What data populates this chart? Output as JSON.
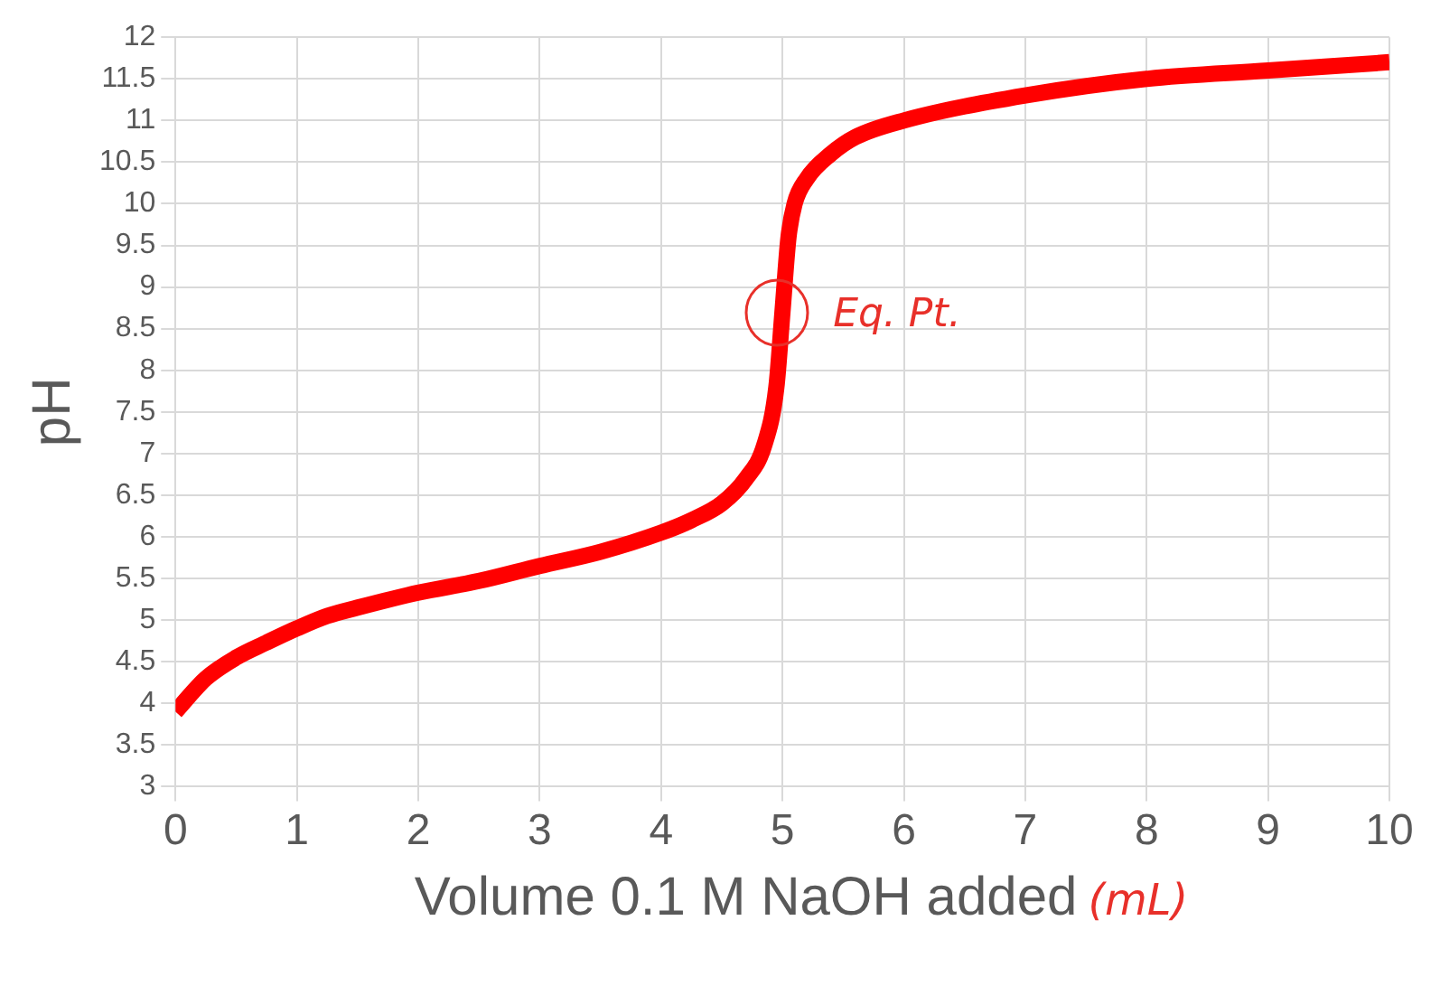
{
  "chart_data": {
    "type": "line",
    "xlabel": "Volume 0.1 M NaOH added",
    "ylabel": "pH",
    "x": [
      0,
      0.25,
      0.5,
      0.75,
      1,
      1.25,
      1.5,
      2,
      2.5,
      3,
      3.5,
      4,
      4.25,
      4.5,
      4.7,
      4.85,
      4.95,
      5,
      5.05,
      5.1,
      5.2,
      5.4,
      5.6,
      6,
      7,
      8,
      9,
      10
    ],
    "series": [
      {
        "color": "#ff0000",
        "values": [
          3.9,
          4.3,
          4.55,
          4.73,
          4.9,
          5.05,
          5.15,
          5.33,
          5.47,
          5.65,
          5.82,
          6.05,
          6.2,
          6.4,
          6.7,
          7.1,
          7.8,
          8.7,
          9.6,
          10,
          10.3,
          10.6,
          10.8,
          11,
          11.3,
          11.5,
          11.6,
          11.7
        ]
      }
    ],
    "xlim": [
      0,
      10
    ],
    "xticks": [
      0,
      1,
      2,
      3,
      4,
      5,
      6,
      7,
      8,
      9,
      10
    ],
    "ylim": [
      3,
      12
    ],
    "yticks": [
      3,
      3.5,
      4,
      4.5,
      5,
      5.5,
      6,
      6.5,
      7,
      7.5,
      8,
      8.5,
      9,
      9.5,
      10,
      10.5,
      11,
      11.5,
      12
    ],
    "grid": true,
    "legend": false,
    "marker": "none",
    "line_style": "solid",
    "annotations": [
      {
        "text": "Eq. Pt.",
        "x": 5,
        "y": 8.7
      },
      "(mL)"
    ]
  }
}
